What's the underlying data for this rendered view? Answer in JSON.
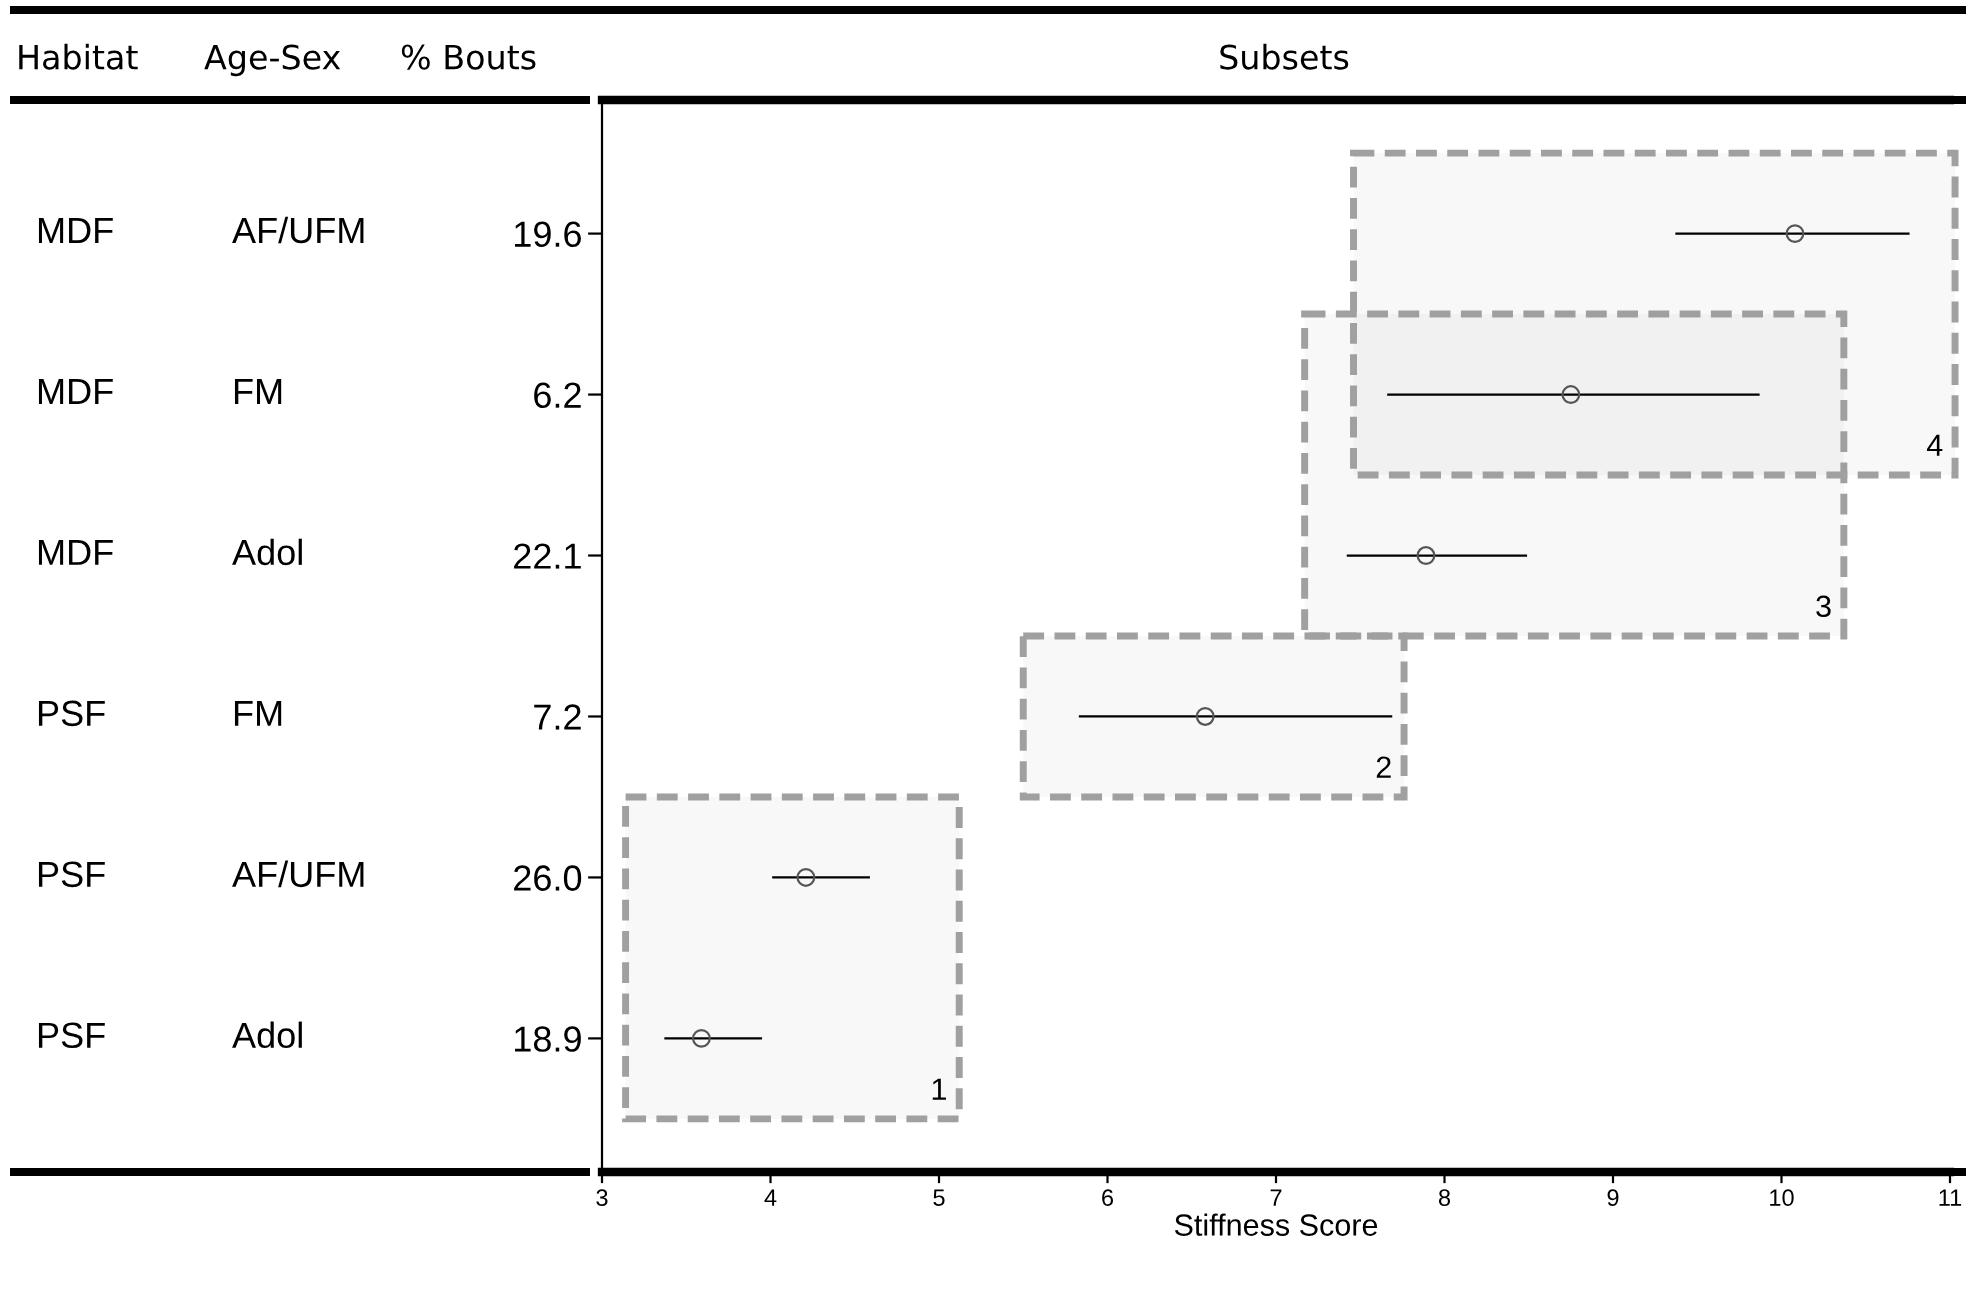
{
  "chart_data": {
    "type": "scatter",
    "title": "Subsets",
    "xlabel": "Stiffness Score",
    "categories": [
      "19.6",
      "6.2",
      "22.1",
      "7.2",
      "26.0",
      "18.9"
    ],
    "orientation": "horizontal",
    "values": [
      10.08,
      8.75,
      7.89,
      6.58,
      4.21,
      3.59
    ],
    "errors": [
      [
        9.37,
        10.76
      ],
      [
        7.66,
        9.87
      ],
      [
        7.42,
        8.49
      ],
      [
        5.83,
        7.69
      ],
      [
        4.01,
        4.59
      ],
      [
        3.37,
        3.95
      ]
    ],
    "color": "#555555",
    "marker": "circle",
    "xlim": [
      3,
      11
    ],
    "xticks": [
      3,
      4,
      5,
      6,
      7,
      8,
      9,
      10,
      11
    ],
    "grid": false,
    "bands": [
      {
        "axis": "x",
        "from": 3.14,
        "to": 5.12,
        "label": "1",
        "color": "#a0a0a0"
      },
      {
        "axis": "x",
        "from": 5.5,
        "to": 7.76,
        "label": "2",
        "color": "#a0a0a0"
      },
      {
        "axis": "x",
        "from": 7.17,
        "to": 10.37,
        "label": "3",
        "color": "#a0a0a0"
      },
      {
        "axis": "x",
        "from": 7.46,
        "to": 11.03,
        "label": "4",
        "color": "#a0a0a0"
      }
    ],
    "annotations": [
      "Habitat",
      "Age-Sex",
      "% Bouts",
      "MDF",
      "AF/UFM",
      "MDF",
      "FM",
      "MDF",
      "Adol",
      "PSF",
      "FM",
      "PSF",
      "AF/UFM",
      "PSF",
      "Adol"
    ]
  }
}
